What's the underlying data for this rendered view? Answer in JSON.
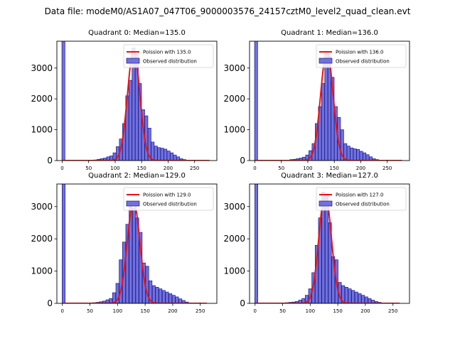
{
  "suptitle": "Data file: modeM0/AS1A07_047T06_9000003576_24157cztM0_level2_quad_clean.evt",
  "colors": {
    "bar_fill": "#7070e0",
    "bar_edge": "#1a1a80",
    "fit_line": "#ee1111",
    "frame": "#000000",
    "background": "#ffffff"
  },
  "chart_data": [
    {
      "type": "bar",
      "title": "Quadrant 0: Median=135.0",
      "xlim": [
        -10,
        292
      ],
      "ylim": [
        0,
        3870
      ],
      "xticks": [
        0,
        50,
        100,
        150,
        200,
        250
      ],
      "yticks": [
        0,
        1000,
        2000,
        3000
      ],
      "bin_width": 5.7,
      "bins": [
        [
          -0.5,
          3870
        ],
        [
          60,
          20
        ],
        [
          66,
          40
        ],
        [
          72,
          60
        ],
        [
          78,
          80
        ],
        [
          84,
          120
        ],
        [
          90,
          150
        ],
        [
          96,
          250
        ],
        [
          102,
          450
        ],
        [
          108,
          700
        ],
        [
          114,
          1200
        ],
        [
          120,
          2100
        ],
        [
          126,
          2600
        ],
        [
          132,
          3650
        ],
        [
          138,
          3450
        ],
        [
          144,
          2500
        ],
        [
          150,
          1650
        ],
        [
          156,
          1450
        ],
        [
          162,
          1050
        ],
        [
          168,
          600
        ],
        [
          174,
          470
        ],
        [
          180,
          420
        ],
        [
          186,
          400
        ],
        [
          192,
          370
        ],
        [
          198,
          310
        ],
        [
          204,
          250
        ],
        [
          210,
          180
        ],
        [
          216,
          120
        ],
        [
          222,
          60
        ],
        [
          228,
          30
        ]
      ],
      "fit": {
        "mu": 135.0,
        "sigma": 11.6,
        "peak": 3580,
        "x_start": 0,
        "x_end": 278
      },
      "legend": [
        "Poission with 135.0",
        "Observed distribution"
      ]
    },
    {
      "type": "bar",
      "title": "Quadrant 1: Median=136.0",
      "xlim": [
        -10,
        292
      ],
      "ylim": [
        0,
        3870
      ],
      "xticks": [
        0,
        50,
        100,
        150,
        200,
        250
      ],
      "yticks": [
        0,
        1000,
        2000,
        3000
      ],
      "bin_width": 5.7,
      "bins": [
        [
          -0.5,
          3870
        ],
        [
          66,
          30
        ],
        [
          72,
          40
        ],
        [
          78,
          60
        ],
        [
          84,
          80
        ],
        [
          90,
          110
        ],
        [
          96,
          180
        ],
        [
          102,
          320
        ],
        [
          108,
          550
        ],
        [
          114,
          1200
        ],
        [
          120,
          1750
        ],
        [
          126,
          2500
        ],
        [
          132,
          3550
        ],
        [
          138,
          3400
        ],
        [
          144,
          2700
        ],
        [
          150,
          1750
        ],
        [
          156,
          1400
        ],
        [
          162,
          1000
        ],
        [
          168,
          550
        ],
        [
          174,
          470
        ],
        [
          180,
          410
        ],
        [
          186,
          380
        ],
        [
          192,
          360
        ],
        [
          198,
          300
        ],
        [
          204,
          250
        ],
        [
          210,
          190
        ],
        [
          216,
          120
        ],
        [
          222,
          60
        ],
        [
          228,
          30
        ]
      ],
      "fit": {
        "mu": 136.0,
        "sigma": 11.7,
        "peak": 3550,
        "x_start": 0,
        "x_end": 278
      },
      "legend": [
        "Poission with 136.0",
        "Observed distribution"
      ]
    },
    {
      "type": "bar",
      "title": "Quadrant 2: Median=129.0",
      "xlim": [
        -10,
        280
      ],
      "ylim": [
        0,
        3700
      ],
      "xticks": [
        0,
        50,
        100,
        150,
        200,
        250
      ],
      "yticks": [
        0,
        1000,
        2000,
        3000
      ],
      "bin_width": 5.5,
      "bins": [
        [
          -0.5,
          3700
        ],
        [
          55,
          20
        ],
        [
          61,
          30
        ],
        [
          67,
          50
        ],
        [
          73,
          70
        ],
        [
          79,
          110
        ],
        [
          85,
          150
        ],
        [
          91,
          330
        ],
        [
          97,
          620
        ],
        [
          103,
          1350
        ],
        [
          109,
          1900
        ],
        [
          115,
          2450
        ],
        [
          121,
          3000
        ],
        [
          127,
          2950
        ],
        [
          133,
          2650
        ],
        [
          139,
          2200
        ],
        [
          145,
          1250
        ],
        [
          151,
          1150
        ],
        [
          157,
          700
        ],
        [
          163,
          550
        ],
        [
          169,
          500
        ],
        [
          175,
          450
        ],
        [
          181,
          400
        ],
        [
          187,
          350
        ],
        [
          193,
          300
        ],
        [
          199,
          250
        ],
        [
          205,
          200
        ],
        [
          211,
          140
        ],
        [
          217,
          90
        ],
        [
          223,
          40
        ]
      ],
      "fit": {
        "mu": 129.0,
        "sigma": 11.4,
        "peak": 3150,
        "x_start": 0,
        "x_end": 262
      },
      "legend": [
        "Poission with 129.0",
        "Observed distribution"
      ]
    },
    {
      "type": "bar",
      "title": "Quadrant 3: Median=127.0",
      "xlim": [
        -10,
        280
      ],
      "ylim": [
        0,
        3700
      ],
      "xticks": [
        0,
        50,
        100,
        150,
        200,
        250
      ],
      "yticks": [
        0,
        1000,
        2000,
        3000
      ],
      "bin_width": 5.5,
      "bins": [
        [
          -0.5,
          3700
        ],
        [
          55,
          20
        ],
        [
          61,
          30
        ],
        [
          67,
          40
        ],
        [
          73,
          60
        ],
        [
          79,
          100
        ],
        [
          85,
          150
        ],
        [
          91,
          250
        ],
        [
          97,
          450
        ],
        [
          103,
          950
        ],
        [
          109,
          1800
        ],
        [
          115,
          2650
        ],
        [
          121,
          3450
        ],
        [
          127,
          3400
        ],
        [
          133,
          2500
        ],
        [
          139,
          1450
        ],
        [
          145,
          1350
        ],
        [
          151,
          650
        ],
        [
          157,
          550
        ],
        [
          163,
          500
        ],
        [
          169,
          450
        ],
        [
          175,
          400
        ],
        [
          181,
          350
        ],
        [
          187,
          300
        ],
        [
          193,
          250
        ],
        [
          199,
          200
        ],
        [
          205,
          150
        ],
        [
          211,
          100
        ],
        [
          217,
          60
        ],
        [
          223,
          30
        ]
      ],
      "fit": {
        "mu": 127.0,
        "sigma": 11.3,
        "peak": 3400,
        "x_start": 0,
        "x_end": 262
      },
      "legend": [
        "Poission with 127.0",
        "Observed distribution"
      ]
    }
  ]
}
